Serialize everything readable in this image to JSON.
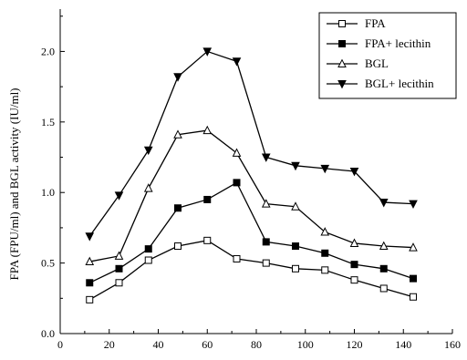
{
  "chart_data": {
    "type": "line",
    "title": "",
    "xlabel": "",
    "ylabel": "FPA (FPU/ml) and BGL activity (IU/ml)",
    "xlim": [
      0,
      160
    ],
    "ylim": [
      0.0,
      2.3
    ],
    "x_ticks": [
      "0",
      "20",
      "40",
      "60",
      "80",
      "100",
      "120",
      "140",
      "160"
    ],
    "y_ticks": [
      "0.0",
      "0.5",
      "1.0",
      "1.5",
      "2.0"
    ],
    "grid": false,
    "legend_position": "top-right",
    "x": [
      12,
      24,
      36,
      48,
      60,
      72,
      84,
      96,
      108,
      120,
      132,
      144
    ],
    "series": [
      {
        "name": "FPA",
        "marker": "square-open",
        "values": [
          0.24,
          0.36,
          0.52,
          0.62,
          0.66,
          0.53,
          0.5,
          0.46,
          0.45,
          0.38,
          0.32,
          0.26
        ]
      },
      {
        "name": "FPA+ lecithin",
        "marker": "square-filled",
        "values": [
          0.36,
          0.46,
          0.6,
          0.89,
          0.95,
          1.07,
          0.65,
          0.62,
          0.57,
          0.49,
          0.46,
          0.39
        ]
      },
      {
        "name": "BGL",
        "marker": "triangle-up-open",
        "values": [
          0.51,
          0.55,
          1.03,
          1.41,
          1.44,
          1.28,
          0.92,
          0.9,
          0.72,
          0.64,
          0.62,
          0.61
        ]
      },
      {
        "name": "BGL+ lecithin",
        "marker": "triangle-down-filled",
        "values": [
          0.69,
          0.98,
          1.3,
          1.82,
          2.0,
          1.93,
          1.25,
          1.19,
          1.17,
          1.15,
          0.93,
          0.92
        ]
      }
    ]
  }
}
